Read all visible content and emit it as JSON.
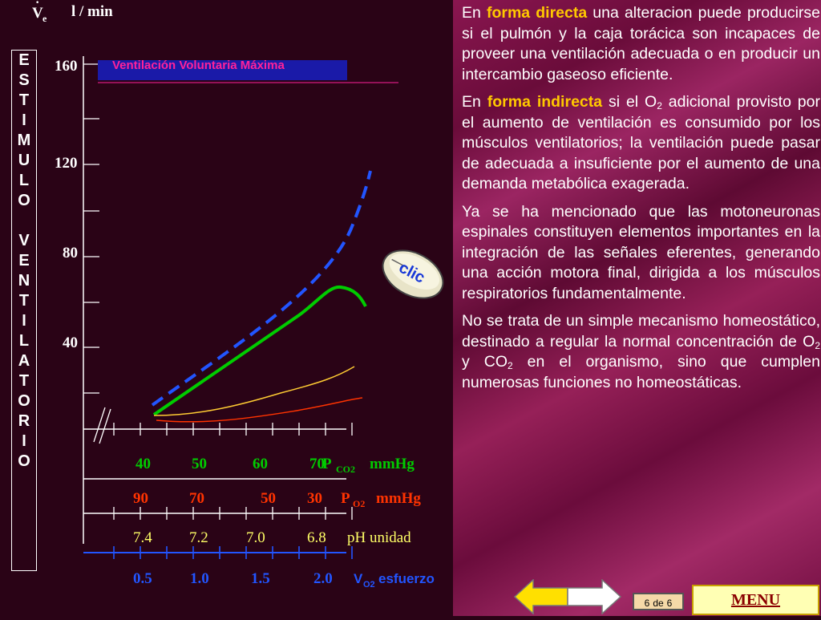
{
  "chart": {
    "y_unit_symbol": "V",
    "y_unit_subscript": "e",
    "y_unit": "l / min",
    "y_ticks": [
      "160",
      "120",
      "80",
      "40"
    ],
    "mvv_label": "Ventilación Voluntaria Máxima",
    "side_label": [
      "E",
      "S",
      "T",
      "I",
      "M",
      "U",
      "L",
      "O",
      "",
      "V",
      "E",
      "N",
      "T",
      "I",
      "L",
      "A",
      "T",
      "O",
      "R",
      "I",
      "O"
    ],
    "pco2_values": [
      "40",
      "50",
      "60",
      "70"
    ],
    "pco2_label": "P",
    "pco2_sub": "CO2",
    "pco2_unit": "mmHg",
    "po2_values": [
      "90",
      "70",
      "50",
      "30"
    ],
    "po2_label": "P",
    "po2_sub": "O2",
    "po2_unit": "mmHg",
    "ph_values": [
      "7.4",
      "7.2",
      "7.0",
      "6.8"
    ],
    "ph_unit": "pH unidad",
    "vo2_values": [
      "0.5",
      "1.0",
      "1.5",
      "2.0"
    ],
    "vo2_label": "V",
    "vo2_sub": "O2",
    "vo2_unit": "esfuerzo",
    "clic_label": "clic",
    "colors": {
      "pco2": "#00cc00",
      "po2": "#ff3300",
      "ph": "#ffff66",
      "vo2": "#2255ff",
      "mvv_text": "#ff2299",
      "mvv_box": "#1a1aa8"
    }
  },
  "article": {
    "p1_pre": "En ",
    "p1_hl": "forma directa",
    "p1_text": " una alteracion puede producirse si el pulmón y la caja torácica son incapaces de proveer una ventilación adecuada o en producir un intercambio gaseoso eficiente.",
    "p2_pre": "En ",
    "p2_hl": "forma indirecta",
    "p2_a": " si el O",
    "p2_sub": "2",
    "p2_b": " adicional provisto por el aumento de ventilación es consumido por los músculos ventilatorios; la ventilación puede pasar de adecuada a insuficiente por el aumento de una demanda metabólica exagerada.",
    "p3": "Ya se ha mencionado que las motoneuronas espinales constituyen elementos importantes en la integración de las señales eferentes, generando una acción motora final, dirigida a los músculos respiratorios fundamentalmente.",
    "p4_a": "No se trata de un simple mecanismo homeostático, destinado a regular la normal concentración de O",
    "p4_sub1": "2",
    "p4_b": " y CO",
    "p4_sub2": "2",
    "p4_c": " en el organismo, sino que cumplen numerosas funciones no homeostáticas."
  },
  "footer": {
    "page_current": "6",
    "page_sep": "de",
    "page_total": "6",
    "menu_label": "MENU"
  }
}
